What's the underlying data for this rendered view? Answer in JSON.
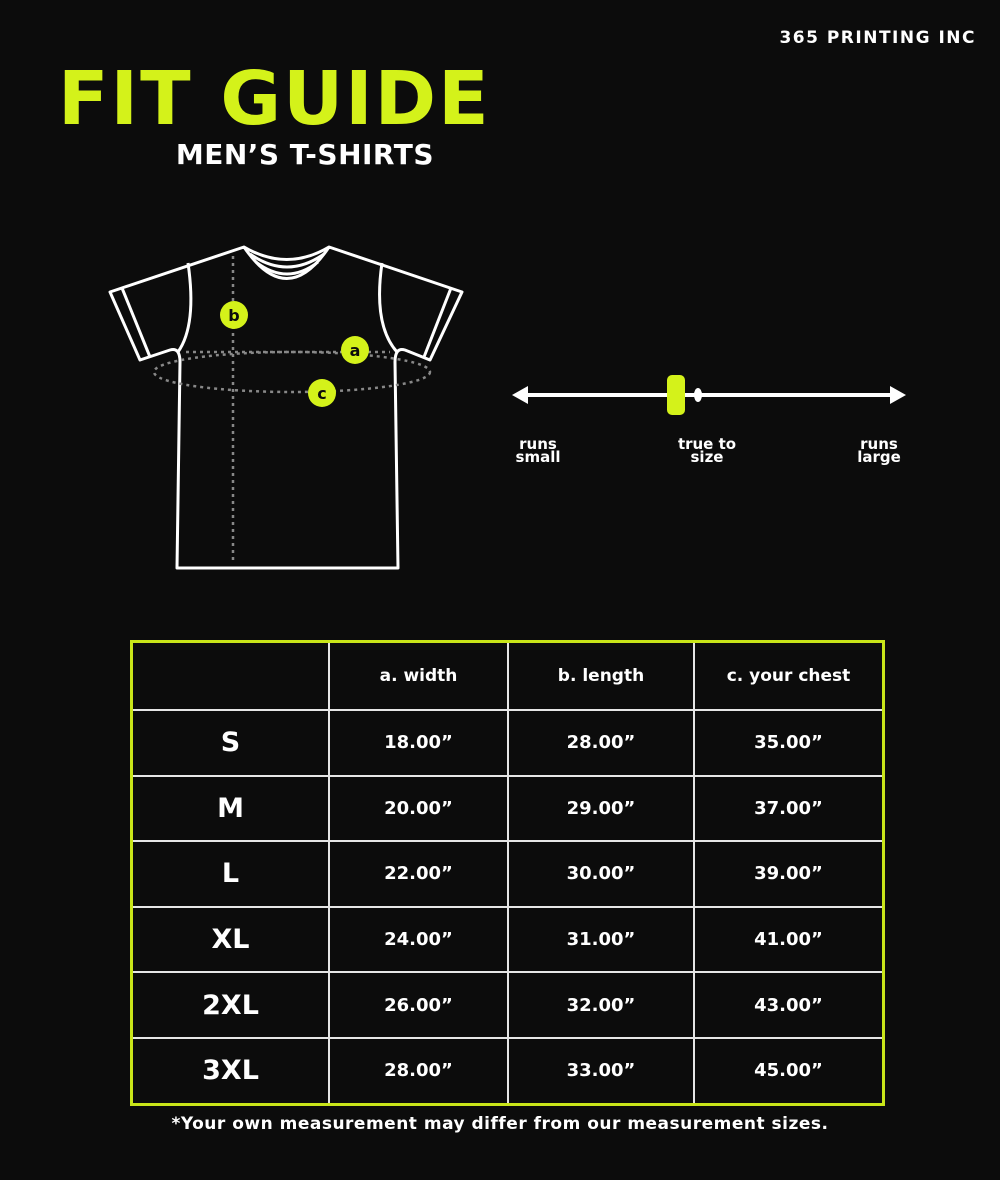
{
  "brand": "365 PRINTING INC",
  "title": "FIT GUIDE",
  "subtitle": "MEN’S T-SHIRTS",
  "colors": {
    "accent": "#d4f21a",
    "background": "#0c0c0c",
    "text": "#ffffff"
  },
  "diagram": {
    "markers": [
      "b",
      "a",
      "c"
    ]
  },
  "fit_scale": {
    "left_label": "runs small",
    "center_label": "true to size",
    "right_label": "runs large",
    "indicator": "true to size"
  },
  "table": {
    "headers": [
      "",
      "a. width",
      "b. length",
      "c. your chest"
    ],
    "rows": [
      {
        "size": "S",
        "width": "18.00”",
        "length": "28.00”",
        "chest": "35.00”"
      },
      {
        "size": "M",
        "width": "20.00”",
        "length": "29.00”",
        "chest": "37.00”"
      },
      {
        "size": "L",
        "width": "22.00”",
        "length": "30.00”",
        "chest": "39.00”"
      },
      {
        "size": "XL",
        "width": "24.00”",
        "length": "31.00”",
        "chest": "41.00”"
      },
      {
        "size": "2XL",
        "width": "26.00”",
        "length": "32.00”",
        "chest": "43.00”"
      },
      {
        "size": "3XL",
        "width": "28.00”",
        "length": "33.00”",
        "chest": "45.00”"
      }
    ]
  },
  "footnote": "*Your own measurement may differ from our measurement sizes."
}
